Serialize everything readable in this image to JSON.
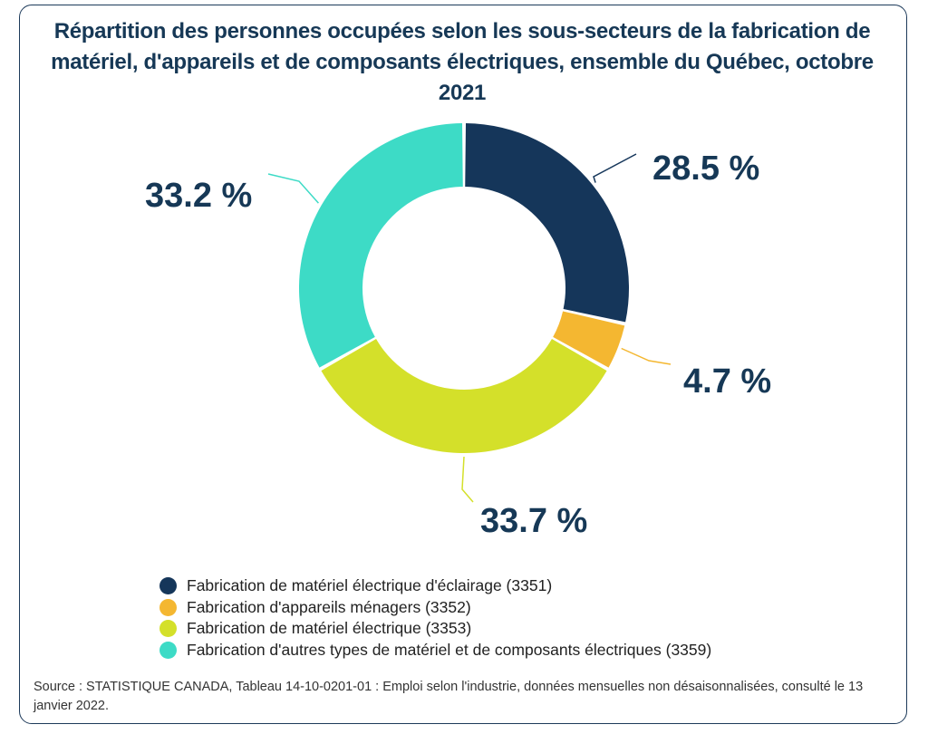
{
  "chart_data": {
    "type": "donut",
    "title": "Répartition des personnes occupées selon les sous-secteurs de la fabrication de matériel, d'appareils et de composants électriques, ensemble du Québec, octobre 2021",
    "categories": [
      "Fabrication de matériel électrique d'éclairage (3351)",
      "Fabrication d'appareils ménagers (3352)",
      "Fabrication de matériel électrique (3353)",
      "Fabrication d'autres types de matériel et de composants électriques (3359)"
    ],
    "values": [
      28.5,
      4.7,
      33.7,
      33.2
    ],
    "data_labels": [
      "28.5 %",
      "4.7 %",
      "33.7 %",
      "33.2 %"
    ],
    "colors": [
      "#15365a",
      "#f4b731",
      "#d4e02a",
      "#3ddbc6"
    ],
    "legend_position": "bottom",
    "unit": "%"
  },
  "source": "Source : STATISTIQUE CANADA, Tableau 14-10-0201-01 : Emploi selon l'industrie, données mensuelles non désaisonnalisées, consulté le 13 janvier 2022."
}
